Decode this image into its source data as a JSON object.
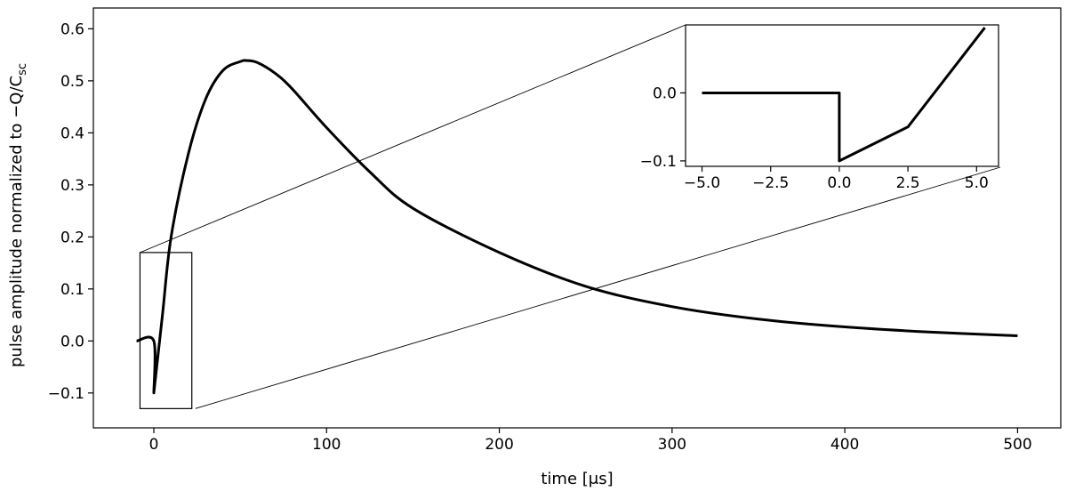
{
  "chart_data": {
    "type": "line",
    "xlabel": "time [μs]",
    "ylabel": "pulse amplitude normalized to −Q/C",
    "ylabel_sub": "sc",
    "xlim": [
      -35,
      525
    ],
    "ylim": [
      -0.167,
      0.64
    ],
    "xticks": [
      0,
      100,
      200,
      300,
      400,
      500
    ],
    "yticks": [
      -0.1,
      0.0,
      0.1,
      0.2,
      0.3,
      0.4,
      0.5,
      0.6
    ],
    "xtick_labels": [
      "0",
      "100",
      "200",
      "300",
      "400",
      "500"
    ],
    "ytick_labels": [
      "−0.1",
      "0.0",
      "0.1",
      "0.2",
      "0.3",
      "0.4",
      "0.5",
      "0.6"
    ],
    "series": [
      {
        "x": [
          -10,
          0,
          0,
          5,
          10,
          20,
          30,
          40,
          50,
          54,
          60,
          70,
          80,
          100,
          125,
          150,
          200,
          250,
          300,
          350,
          400,
          450,
          500
        ],
        "y": [
          0,
          0,
          -0.1,
          0.05,
          0.2,
          0.36,
          0.465,
          0.52,
          0.537,
          0.539,
          0.535,
          0.515,
          0.485,
          0.41,
          0.325,
          0.255,
          0.17,
          0.105,
          0.066,
          0.042,
          0.027,
          0.017,
          0.01
        ]
      }
    ],
    "zoom_region": {
      "x": [
        -8,
        22
      ],
      "y": [
        -0.13,
        0.17
      ]
    },
    "inset": {
      "xlim": [
        -5.6,
        5.8
      ],
      "ylim": [
        -0.108,
        0.1
      ],
      "xticks": [
        -5,
        -2.5,
        0,
        2.5,
        5
      ],
      "yticks": [
        -0.1,
        0.0
      ],
      "xtick_labels": [
        "−5.0",
        "−2.5",
        "0.0",
        "2.5",
        "5.0"
      ],
      "ytick_labels": [
        "−0.1",
        "0.0"
      ],
      "series": [
        {
          "x": [
            -5,
            0,
            0,
            2.5,
            5.3
          ],
          "y": [
            0,
            0,
            -0.1,
            -0.05,
            0.096
          ]
        }
      ]
    }
  }
}
